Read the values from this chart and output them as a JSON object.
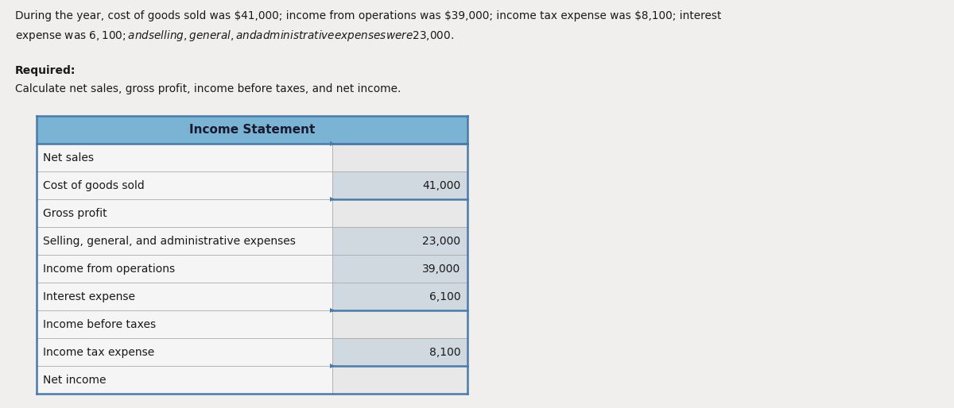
{
  "background_color": "#e8e8e8",
  "page_bg": "#f0efee",
  "header_line1": "During the year, cost of goods sold was $41,000; income from operations was $39,000; income tax expense was $8,100; interest",
  "header_line2": "expense was $6,100; and selling, general, and administrative expenses were $23,000.",
  "required_text": "Required:",
  "instruction_text": "Calculate net sales, gross profit, income before taxes, and net income.",
  "table_title": "Income Statement",
  "table_header_bg": "#7ab3d4",
  "table_header_text_color": "#1a1a2e",
  "table_left_bg": "#f5f5f5",
  "table_right_answer_bg": "#e8e8e8",
  "table_right_given_bg": "#d0d8e0",
  "table_border_dark": "#4a7aa8",
  "table_border_light": "#aaaaaa",
  "rows": [
    {
      "label": "Net sales",
      "value": "",
      "right_bg": "answer",
      "thick_top": true,
      "thick_bottom": false
    },
    {
      "label": "Cost of goods sold",
      "value": "41,000",
      "right_bg": "given",
      "thick_top": false,
      "thick_bottom": false
    },
    {
      "label": "Gross profit",
      "value": "",
      "right_bg": "answer",
      "thick_top": true,
      "thick_bottom": false
    },
    {
      "label": "Selling, general, and administrative expenses",
      "value": "23,000",
      "right_bg": "given",
      "thick_top": false,
      "thick_bottom": false
    },
    {
      "label": "Income from operations",
      "value": "39,000",
      "right_bg": "given",
      "thick_top": false,
      "thick_bottom": false
    },
    {
      "label": "Interest expense",
      "value": "6,100",
      "right_bg": "given",
      "thick_top": false,
      "thick_bottom": false
    },
    {
      "label": "Income before taxes",
      "value": "",
      "right_bg": "answer",
      "thick_top": true,
      "thick_bottom": false
    },
    {
      "label": "Income tax expense",
      "value": "8,100",
      "right_bg": "given",
      "thick_top": false,
      "thick_bottom": false
    },
    {
      "label": "Net income",
      "value": "",
      "right_bg": "answer",
      "thick_top": true,
      "thick_bottom": true
    }
  ],
  "font_size_body": 10,
  "font_size_title": 11,
  "font_size_header_text": 9.8
}
